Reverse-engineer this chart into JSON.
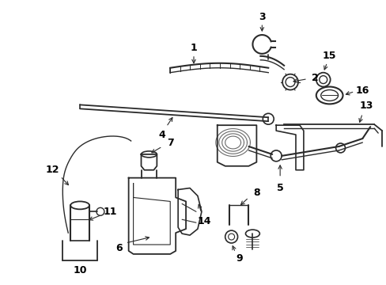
{
  "bg_color": "#ffffff",
  "lc": "#2a2a2a",
  "figsize": [
    4.89,
    3.6
  ],
  "dpi": 100
}
